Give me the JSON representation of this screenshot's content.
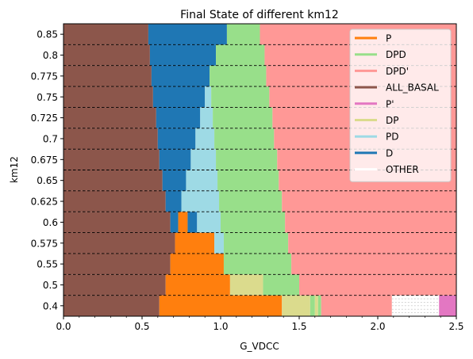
{
  "chart_data": {
    "type": "bar",
    "orientation": "horizontal-stacked",
    "title": "Final State of different km12",
    "xlabel": "G_VDCC",
    "ylabel": "km12",
    "xlim": [
      0,
      2.5
    ],
    "x_ticks": [
      "0.0",
      "0.5",
      "1.0",
      "1.5",
      "2.0",
      "2.5"
    ],
    "x_tick_values": [
      0,
      0.5,
      1.0,
      1.5,
      2.0,
      2.5
    ],
    "categories": [
      "0.4",
      "0.5",
      "0.55",
      "0.575",
      "0.6",
      "0.625",
      "0.65",
      "0.675",
      "0.7",
      "0.725",
      "0.75",
      "0.775",
      "0.8",
      "0.85"
    ],
    "grid": "horizontal dashed lines between rows",
    "legend_position": "top-right",
    "legend": [
      {
        "name": "P",
        "color": "#ff7f0e"
      },
      {
        "name": "DPD",
        "color": "#98df8a"
      },
      {
        "name": "DPD'",
        "color": "#ff9896"
      },
      {
        "name": "ALL_BASAL",
        "color": "#8c564b"
      },
      {
        "name": "P'",
        "color": "#e377c2"
      },
      {
        "name": "DP",
        "color": "#dbdb8d"
      },
      {
        "name": "PD",
        "color": "#9edae5"
      },
      {
        "name": "D",
        "color": "#1f77b4"
      },
      {
        "name": "OTHER",
        "color": "#ffffff"
      }
    ],
    "rows": [
      {
        "km12": "0.4",
        "segments": [
          {
            "state": "ALL_BASAL",
            "from": 0,
            "to": 0.61
          },
          {
            "state": "P",
            "from": 0.61,
            "to": 1.39
          },
          {
            "state": "DP",
            "from": 1.39,
            "to": 1.57
          },
          {
            "state": "DPD",
            "from": 1.57,
            "to": 1.6
          },
          {
            "state": "DP",
            "from": 1.6,
            "to": 1.62
          },
          {
            "state": "DPD",
            "from": 1.62,
            "to": 1.64
          },
          {
            "state": "DPD'",
            "from": 1.64,
            "to": 2.09
          },
          {
            "state": "OTHER",
            "from": 2.09,
            "to": 2.39
          },
          {
            "state": "P'",
            "from": 2.39,
            "to": 2.5
          }
        ]
      },
      {
        "km12": "0.5",
        "segments": [
          {
            "state": "ALL_BASAL",
            "from": 0,
            "to": 0.65
          },
          {
            "state": "P",
            "from": 0.65,
            "to": 1.06
          },
          {
            "state": "DP",
            "from": 1.06,
            "to": 1.27
          },
          {
            "state": "DPD",
            "from": 1.27,
            "to": 1.5
          },
          {
            "state": "DPD'",
            "from": 1.5,
            "to": 2.5
          }
        ]
      },
      {
        "km12": "0.55",
        "segments": [
          {
            "state": "ALL_BASAL",
            "from": 0,
            "to": 0.68
          },
          {
            "state": "P",
            "from": 0.68,
            "to": 1.02
          },
          {
            "state": "DPD",
            "from": 1.02,
            "to": 1.45
          },
          {
            "state": "DPD'",
            "from": 1.45,
            "to": 2.5
          }
        ]
      },
      {
        "km12": "0.575",
        "segments": [
          {
            "state": "ALL_BASAL",
            "from": 0,
            "to": 0.71
          },
          {
            "state": "P",
            "from": 0.71,
            "to": 0.96
          },
          {
            "state": "PD",
            "from": 0.96,
            "to": 1.02
          },
          {
            "state": "DPD",
            "from": 1.02,
            "to": 1.43
          },
          {
            "state": "DPD'",
            "from": 1.43,
            "to": 2.5
          }
        ]
      },
      {
        "km12": "0.6",
        "segments": [
          {
            "state": "ALL_BASAL",
            "from": 0,
            "to": 0.68
          },
          {
            "state": "D",
            "from": 0.68,
            "to": 0.73
          },
          {
            "state": "P",
            "from": 0.73,
            "to": 0.79
          },
          {
            "state": "D",
            "from": 0.79,
            "to": 0.85
          },
          {
            "state": "PD",
            "from": 0.85,
            "to": 1.0
          },
          {
            "state": "DPD",
            "from": 1.0,
            "to": 1.41
          },
          {
            "state": "DPD'",
            "from": 1.41,
            "to": 2.5
          }
        ]
      },
      {
        "km12": "0.625",
        "segments": [
          {
            "state": "ALL_BASAL",
            "from": 0,
            "to": 0.65
          },
          {
            "state": "D",
            "from": 0.65,
            "to": 0.75
          },
          {
            "state": "PD",
            "from": 0.75,
            "to": 0.99
          },
          {
            "state": "DPD",
            "from": 0.99,
            "to": 1.39
          },
          {
            "state": "DPD'",
            "from": 1.39,
            "to": 2.5
          }
        ]
      },
      {
        "km12": "0.65",
        "segments": [
          {
            "state": "ALL_BASAL",
            "from": 0,
            "to": 0.63
          },
          {
            "state": "D",
            "from": 0.63,
            "to": 0.78
          },
          {
            "state": "PD",
            "from": 0.78,
            "to": 0.98
          },
          {
            "state": "DPD",
            "from": 0.98,
            "to": 1.37
          },
          {
            "state": "DPD'",
            "from": 1.37,
            "to": 2.5
          }
        ]
      },
      {
        "km12": "0.675",
        "segments": [
          {
            "state": "ALL_BASAL",
            "from": 0,
            "to": 0.61
          },
          {
            "state": "D",
            "from": 0.61,
            "to": 0.81
          },
          {
            "state": "PD",
            "from": 0.81,
            "to": 0.97
          },
          {
            "state": "DPD",
            "from": 0.97,
            "to": 1.36
          },
          {
            "state": "DPD'",
            "from": 1.36,
            "to": 2.5
          }
        ]
      },
      {
        "km12": "0.7",
        "segments": [
          {
            "state": "ALL_BASAL",
            "from": 0,
            "to": 0.6
          },
          {
            "state": "D",
            "from": 0.6,
            "to": 0.84
          },
          {
            "state": "PD",
            "from": 0.84,
            "to": 0.96
          },
          {
            "state": "DPD",
            "from": 0.96,
            "to": 1.34
          },
          {
            "state": "DPD'",
            "from": 1.34,
            "to": 2.5
          }
        ]
      },
      {
        "km12": "0.725",
        "segments": [
          {
            "state": "ALL_BASAL",
            "from": 0,
            "to": 0.59
          },
          {
            "state": "D",
            "from": 0.59,
            "to": 0.87
          },
          {
            "state": "PD",
            "from": 0.87,
            "to": 0.95
          },
          {
            "state": "DPD",
            "from": 0.95,
            "to": 1.33
          },
          {
            "state": "DPD'",
            "from": 1.33,
            "to": 2.5
          }
        ]
      },
      {
        "km12": "0.75",
        "segments": [
          {
            "state": "ALL_BASAL",
            "from": 0,
            "to": 0.57
          },
          {
            "state": "D",
            "from": 0.57,
            "to": 0.9
          },
          {
            "state": "PD",
            "from": 0.9,
            "to": 0.94
          },
          {
            "state": "DPD",
            "from": 0.94,
            "to": 1.31
          },
          {
            "state": "DPD'",
            "from": 1.31,
            "to": 2.5
          }
        ]
      },
      {
        "km12": "0.775",
        "segments": [
          {
            "state": "ALL_BASAL",
            "from": 0,
            "to": 0.56
          },
          {
            "state": "D",
            "from": 0.56,
            "to": 0.93
          },
          {
            "state": "DPD",
            "from": 0.93,
            "to": 1.29
          },
          {
            "state": "DPD'",
            "from": 1.29,
            "to": 2.5
          }
        ]
      },
      {
        "km12": "0.8",
        "segments": [
          {
            "state": "ALL_BASAL",
            "from": 0,
            "to": 0.55
          },
          {
            "state": "D",
            "from": 0.55,
            "to": 0.97
          },
          {
            "state": "DPD",
            "from": 0.97,
            "to": 1.28
          },
          {
            "state": "DPD'",
            "from": 1.28,
            "to": 2.5
          }
        ]
      },
      {
        "km12": "0.85",
        "segments": [
          {
            "state": "ALL_BASAL",
            "from": 0,
            "to": 0.54
          },
          {
            "state": "D",
            "from": 0.54,
            "to": 1.04
          },
          {
            "state": "DPD",
            "from": 1.04,
            "to": 1.25
          },
          {
            "state": "DPD'",
            "from": 1.25,
            "to": 2.5
          }
        ]
      }
    ]
  }
}
